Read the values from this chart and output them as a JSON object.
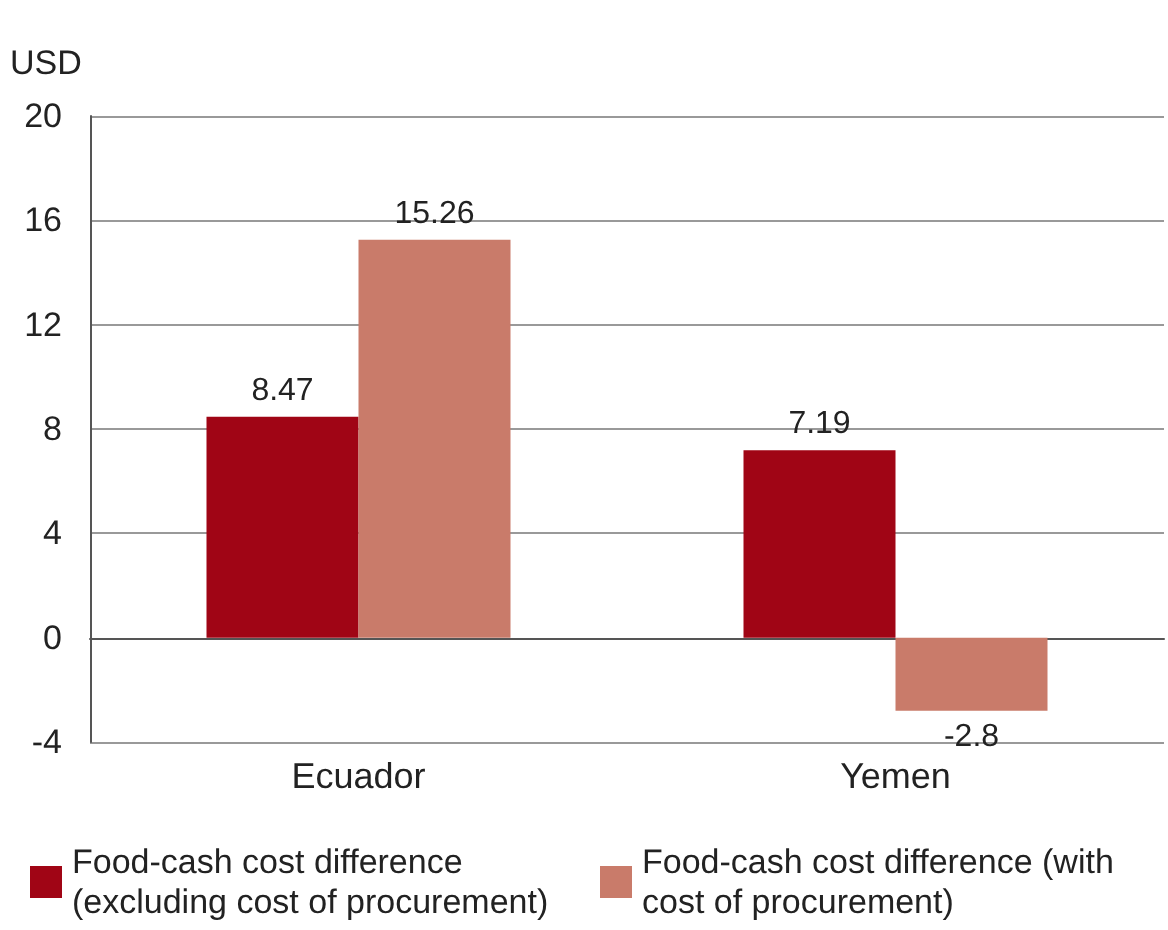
{
  "chart_data": {
    "type": "bar",
    "ylabel": "USD",
    "categories": [
      "Ecuador",
      "Yemen"
    ],
    "series": [
      {
        "name": "Food-cash cost difference (excluding cost of procurement)",
        "color": "#a00515",
        "values": [
          8.47,
          7.19
        ]
      },
      {
        "name": "Food-cash cost difference (with cost of procurement)",
        "color": "#c97b6a",
        "values": [
          15.26,
          -2.8
        ]
      }
    ],
    "ylim": [
      -4,
      20
    ],
    "yticks": [
      -4,
      0,
      4,
      8,
      12,
      16,
      20
    ],
    "grid": "y",
    "legend": "bottom",
    "data_labels": true
  }
}
